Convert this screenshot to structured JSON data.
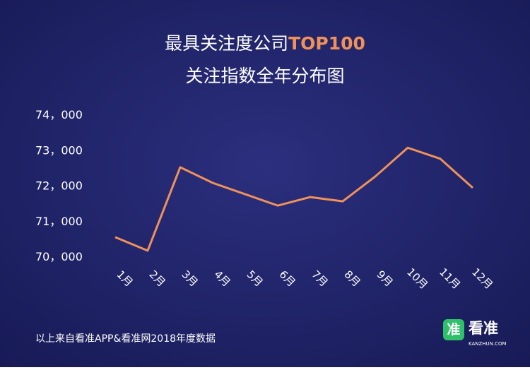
{
  "chart_data": {
    "type": "line",
    "title_parts": [
      "最具关注度公司",
      "TOP100"
    ],
    "subtitle": "关注指数全年分布图",
    "categories": [
      "1月",
      "2月",
      "3月",
      "4月",
      "5月",
      "6月",
      "7月",
      "8月",
      "9月",
      "10月",
      "11月",
      "12月"
    ],
    "values": [
      70540,
      70160,
      72510,
      72070,
      71750,
      71430,
      71670,
      71550,
      72250,
      73060,
      72750,
      71930
    ],
    "color": "#f0915a",
    "ylim": [
      70000,
      74000
    ],
    "yticks": [
      {
        "value": 70000,
        "label": "70，000"
      },
      {
        "value": 71000,
        "label": "71，000"
      },
      {
        "value": 72000,
        "label": "72，000"
      },
      {
        "value": 73000,
        "label": "73，000"
      },
      {
        "value": 74000,
        "label": "74，000"
      }
    ],
    "grid": false,
    "footnote": "以上来自看准APP&看准网2018年度数据"
  },
  "logo": {
    "icon": "准",
    "name": "看准",
    "url": "KANZHUN.COM"
  }
}
